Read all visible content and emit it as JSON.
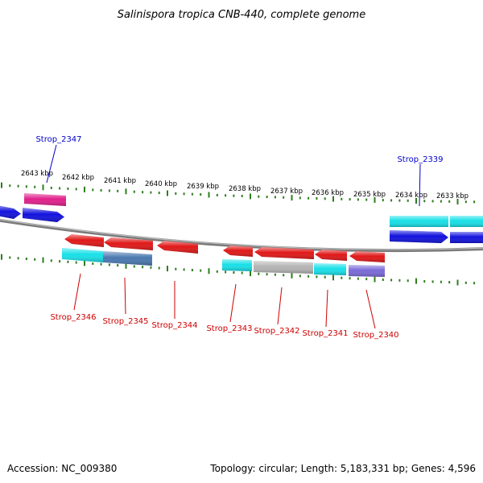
{
  "title": "Salinispora tropica CNB-440, complete genome",
  "footer": {
    "accession": "Accession: NC_009380",
    "summary": "Topology: circular; Length: 5,183,331 bp; Genes: 4,596"
  },
  "kbp_labels": [
    "2643 kbp",
    "2642 kbp",
    "2641 kbp",
    "2640 kbp",
    "2639 kbp",
    "2638 kbp",
    "2637 kbp",
    "2636 kbp",
    "2635 kbp",
    "2634 kbp",
    "2633 kbp"
  ],
  "gene_labels_top": [
    "Strop_2347",
    "Strop_2339"
  ],
  "gene_labels_bottom": [
    "Strop_2346",
    "Strop_2345",
    "Strop_2344",
    "Strop_2343",
    "Strop_2342",
    "Strop_2341",
    "Strop_2340"
  ],
  "colors": {
    "forward_label": "#0000cc",
    "reverse_label": "#cc0000",
    "tick": "#2e7d1e",
    "backbone": "#808080",
    "red": "#e01818",
    "blue": "#1212dd",
    "cyan": "#18e0e8",
    "magenta": "#e0208c",
    "steel": "#4a78b0",
    "gray": "#b4b4b4",
    "violet": "#7a6ad8"
  }
}
